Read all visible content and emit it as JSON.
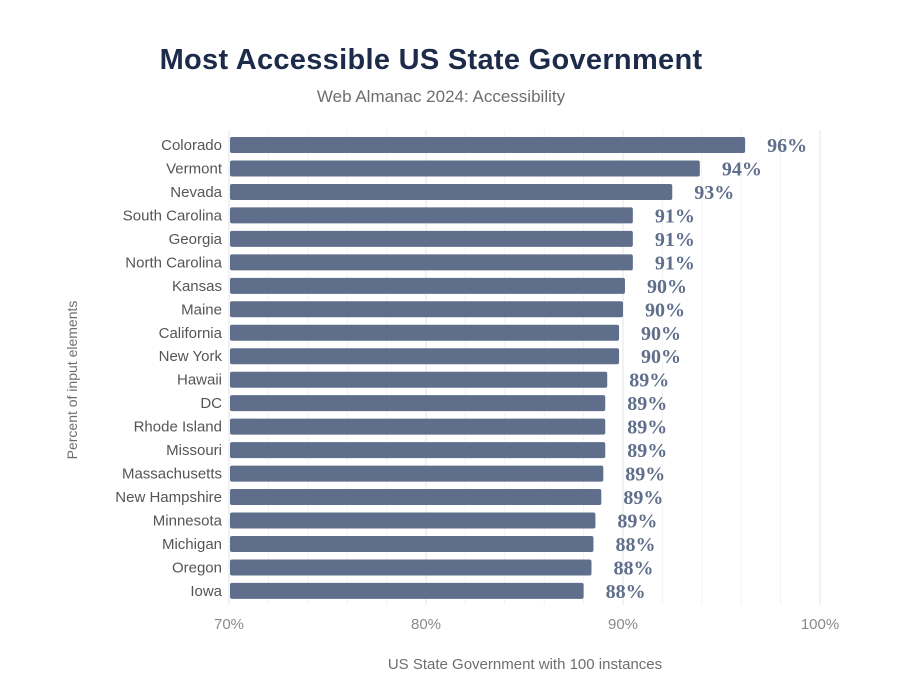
{
  "chart_data": {
    "type": "bar",
    "orientation": "horizontal",
    "title": "Most Accessible US State Government",
    "subtitle": "Web Almanac 2024: Accessibility",
    "xlabel": "US State Government with 100 instances",
    "ylabel": "Percent of input elements",
    "xlim": [
      70,
      100
    ],
    "x_ticks": [
      "70%",
      "80%",
      "90%",
      "100%"
    ],
    "grid": true,
    "bar_color": "#5f6e8b",
    "categories": [
      "Colorado",
      "Vermont",
      "Nevada",
      "South Carolina",
      "Georgia",
      "North Carolina",
      "Kansas",
      "Maine",
      "California",
      "New York",
      "Hawaii",
      "DC",
      "Rhode Island",
      "Missouri",
      "Massachusetts",
      "New Hampshire",
      "Minnesota",
      "Michigan",
      "Oregon",
      "Iowa"
    ],
    "values": [
      96.2,
      93.9,
      92.5,
      90.5,
      90.5,
      90.5,
      90.1,
      90.0,
      89.8,
      89.8,
      89.2,
      89.1,
      89.1,
      89.1,
      89.0,
      88.9,
      88.6,
      88.5,
      88.4,
      88.0
    ],
    "data_labels": [
      "96%",
      "94%",
      "93%",
      "91%",
      "91%",
      "91%",
      "90%",
      "90%",
      "90%",
      "90%",
      "89%",
      "89%",
      "89%",
      "89%",
      "89%",
      "89%",
      "89%",
      "88%",
      "88%",
      "88%"
    ]
  }
}
